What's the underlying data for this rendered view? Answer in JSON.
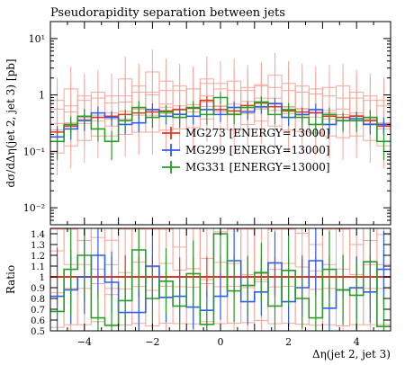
{
  "chart_data": {
    "type": "line",
    "title": "Pseudorapidity separation between jets",
    "xlabel": "Δη(jet 2, jet 3)",
    "ylabel": "dσ/dΔη(jet 2, jet 3) [pb]",
    "ratio_ylabel": "Ratio",
    "xlim": [
      -5,
      5
    ],
    "ylim": [
      0.005,
      20
    ],
    "yscale": "log",
    "ratio_ylim": [
      0.5,
      1.45
    ],
    "x_ticks": [
      -4,
      -2,
      0,
      2,
      4
    ],
    "y_ticks": [
      {
        "value": 10,
        "label": "10¹"
      },
      {
        "value": 1,
        "label": "1"
      },
      {
        "value": 0.1,
        "label": "10⁻¹"
      },
      {
        "value": 0.01,
        "label": "10⁻²"
      }
    ],
    "ratio_ticks": [
      0.5,
      0.6,
      0.7,
      0.8,
      0.9,
      1.0,
      1.1,
      1.2,
      1.3,
      1.4
    ],
    "ratio_tick_labels": [
      "0.5",
      "0.6",
      "0.7",
      "0.8",
      "0.9",
      "1",
      "1.1",
      "1.2",
      "1.3",
      "1.4"
    ],
    "legend_position": "center",
    "bin_edges": [
      -5.0,
      -4.6,
      -4.2,
      -3.8,
      -3.4,
      -3.0,
      -2.6,
      -2.2,
      -1.8,
      -1.4,
      -1.0,
      -0.6,
      -0.2,
      0.2,
      0.6,
      1.0,
      1.4,
      1.8,
      2.2,
      2.6,
      3.0,
      3.4,
      3.8,
      4.2,
      4.6,
      5.0
    ],
    "series": [
      {
        "name": "MG273 [ENERGY=13000]",
        "color": "#e8341c",
        "values": [
          0.22,
          0.28,
          0.35,
          0.4,
          0.42,
          0.45,
          0.48,
          0.5,
          0.52,
          0.55,
          0.58,
          0.8,
          0.55,
          0.52,
          0.65,
          0.72,
          0.62,
          0.52,
          0.5,
          0.48,
          0.42,
          0.4,
          0.42,
          0.35,
          0.28
        ],
        "errors": [
          0.06,
          0.07,
          0.08,
          0.08,
          0.08,
          0.09,
          0.09,
          0.1,
          0.1,
          0.1,
          0.11,
          0.15,
          0.1,
          0.1,
          0.12,
          0.13,
          0.11,
          0.1,
          0.1,
          0.09,
          0.08,
          0.08,
          0.08,
          0.07,
          0.07
        ],
        "ratio": [
          1,
          1,
          1,
          1,
          1,
          1,
          1,
          1,
          1,
          1,
          1,
          1,
          1,
          1,
          1,
          1,
          1,
          1,
          1,
          1,
          1,
          1,
          1,
          1,
          1
        ]
      },
      {
        "name": "MG299 [ENERGY=13000]",
        "color": "#2e5cf0",
        "values": [
          0.18,
          0.25,
          0.35,
          0.48,
          0.4,
          0.3,
          0.32,
          0.55,
          0.42,
          0.45,
          0.42,
          0.55,
          0.45,
          0.6,
          0.5,
          0.62,
          0.7,
          0.4,
          0.45,
          0.55,
          0.3,
          0.35,
          0.38,
          0.3,
          0.3
        ],
        "errors": [
          0.08,
          0.09,
          0.12,
          0.14,
          0.12,
          0.1,
          0.1,
          0.16,
          0.12,
          0.13,
          0.12,
          0.15,
          0.12,
          0.16,
          0.14,
          0.16,
          0.18,
          0.12,
          0.13,
          0.15,
          0.1,
          0.11,
          0.12,
          0.1,
          0.1
        ],
        "ratio": [
          0.82,
          0.88,
          1.0,
          1.2,
          0.95,
          0.67,
          0.67,
          1.1,
          0.81,
          0.82,
          0.72,
          0.69,
          0.82,
          1.15,
          0.77,
          0.86,
          1.13,
          0.77,
          0.9,
          1.15,
          0.71,
          0.88,
          0.9,
          0.86,
          1.07
        ]
      },
      {
        "name": "MG331 [ENERGY=13000]",
        "color": "#2a9a2a",
        "values": [
          0.15,
          0.3,
          0.42,
          0.25,
          0.15,
          0.35,
          0.6,
          0.4,
          0.5,
          0.4,
          0.6,
          0.45,
          0.9,
          0.45,
          0.6,
          0.75,
          0.45,
          0.55,
          0.4,
          0.3,
          0.45,
          0.35,
          0.35,
          0.4,
          0.15
        ],
        "errors": [
          0.08,
          0.12,
          0.15,
          0.1,
          0.08,
          0.13,
          0.18,
          0.14,
          0.16,
          0.14,
          0.18,
          0.15,
          0.22,
          0.15,
          0.18,
          0.2,
          0.15,
          0.17,
          0.14,
          0.12,
          0.15,
          0.13,
          0.13,
          0.14,
          0.08
        ],
        "ratio": [
          0.68,
          1.07,
          1.2,
          0.62,
          0.55,
          0.78,
          1.25,
          0.8,
          0.96,
          0.73,
          1.03,
          0.56,
          1.4,
          0.87,
          0.92,
          1.04,
          0.73,
          1.06,
          0.8,
          0.62,
          1.07,
          0.88,
          0.83,
          1.14,
          0.54
        ]
      }
    ],
    "variations": [
      [
        0.5,
        0.8,
        0.6,
        0.7,
        0.45,
        1.2,
        0.9,
        1.6,
        1.1,
        0.9,
        0.8,
        1.2,
        1.0,
        1.1,
        0.75,
        0.9,
        1.4,
        1.0,
        0.9,
        0.8,
        0.85,
        0.9,
        0.7,
        0.6,
        0.5
      ],
      [
        0.35,
        0.4,
        0.5,
        0.55,
        0.6,
        0.6,
        0.7,
        0.7,
        0.75,
        0.75,
        0.8,
        1.0,
        0.8,
        0.75,
        0.85,
        0.95,
        0.85,
        0.75,
        0.7,
        0.65,
        0.6,
        0.55,
        0.55,
        0.5,
        0.4
      ],
      [
        0.15,
        0.2,
        0.25,
        0.3,
        0.3,
        0.32,
        0.35,
        0.35,
        0.38,
        0.4,
        0.42,
        0.6,
        0.4,
        0.38,
        0.48,
        0.55,
        0.45,
        0.38,
        0.36,
        0.34,
        0.3,
        0.28,
        0.3,
        0.25,
        0.2
      ]
    ],
    "variation_color": "#f4a79c"
  }
}
